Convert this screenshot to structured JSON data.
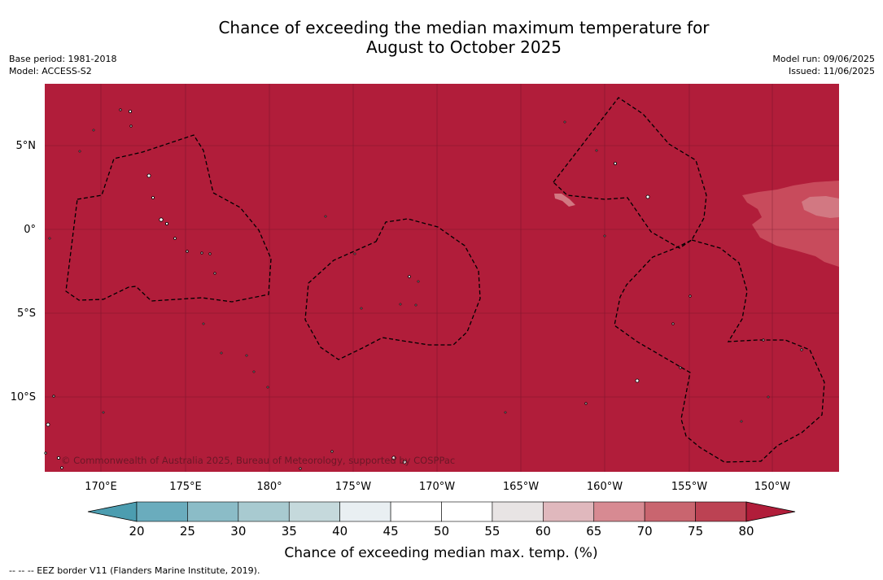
{
  "header": {
    "title_line1": "Chance of exceeding the median maximum temperature for",
    "title_line2": "August to October 2025",
    "base_period": "Base period: 1981-2018",
    "model": "Model: ACCESS-S2",
    "model_run": "Model run: 09/06/2025",
    "issued": "Issued: 11/06/2025"
  },
  "map": {
    "lat_labels": [
      "5°N",
      "0°",
      "5°S",
      "10°S"
    ],
    "lon_labels": [
      "170°E",
      "175°E",
      "180°",
      "175°W",
      "170°W",
      "165°W",
      "160°W",
      "155°W",
      "150°W"
    ],
    "copyright": "© Commonwealth of Australia 2025, Bureau of Meteorology, supported by COSPPac",
    "dominant_category": "80",
    "colors": {
      "ocean_fill": "#b11d3a",
      "patch_75": "#c84b5c",
      "patch_70": "#d27882",
      "land": "#ffffff",
      "eez_line": "#000000"
    }
  },
  "legend": {
    "title": "Chance of exceeding median max. temp. (%)",
    "ticks": [
      "20",
      "25",
      "30",
      "35",
      "40",
      "45",
      "50",
      "55",
      "60",
      "65",
      "70",
      "75",
      "80"
    ],
    "colors": [
      "#4c9db0",
      "#6aacbd",
      "#8bbcc7",
      "#a8cad0",
      "#c5d9dc",
      "#e9eff2",
      "#ffffff",
      "#ffffff",
      "#e8e4e4",
      "#e0b8bd",
      "#d78a92",
      "#c9656f",
      "#bc4253",
      "#b11d3a"
    ]
  },
  "footer": {
    "text": "--  --  -- EEZ border V11 (Flanders Marine Institute, 2019)."
  }
}
